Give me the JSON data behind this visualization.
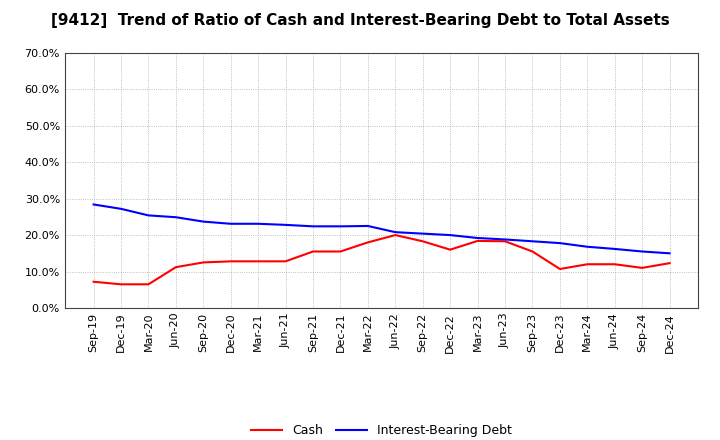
{
  "title": "[9412]  Trend of Ratio of Cash and Interest-Bearing Debt to Total Assets",
  "x_labels": [
    "Sep-19",
    "Dec-19",
    "Mar-20",
    "Jun-20",
    "Sep-20",
    "Dec-20",
    "Mar-21",
    "Jun-21",
    "Sep-21",
    "Dec-21",
    "Mar-22",
    "Jun-22",
    "Sep-22",
    "Dec-22",
    "Mar-23",
    "Jun-23",
    "Sep-23",
    "Dec-23",
    "Mar-24",
    "Jun-24",
    "Sep-24",
    "Dec-24"
  ],
  "cash": [
    0.072,
    0.065,
    0.065,
    0.112,
    0.125,
    0.128,
    0.128,
    0.128,
    0.155,
    0.155,
    0.18,
    0.2,
    0.183,
    0.16,
    0.184,
    0.183,
    0.155,
    0.107,
    0.12,
    0.12,
    0.11,
    0.123
  ],
  "interest_bearing_debt": [
    0.284,
    0.272,
    0.254,
    0.249,
    0.237,
    0.231,
    0.231,
    0.228,
    0.224,
    0.224,
    0.225,
    0.208,
    0.204,
    0.2,
    0.192,
    0.188,
    0.183,
    0.178,
    0.168,
    0.162,
    0.155,
    0.15
  ],
  "cash_color": "#ff0000",
  "ibd_color": "#0000ff",
  "ylim": [
    0.0,
    0.7
  ],
  "yticks": [
    0.0,
    0.1,
    0.2,
    0.3,
    0.4,
    0.5,
    0.6,
    0.7
  ],
  "grid_color": "#aaaaaa",
  "bg_color": "#ffffff",
  "legend_cash": "Cash",
  "legend_ibd": "Interest-Bearing Debt",
  "title_fontsize": 11,
  "axis_fontsize": 8,
  "legend_fontsize": 9,
  "line_width": 1.5
}
